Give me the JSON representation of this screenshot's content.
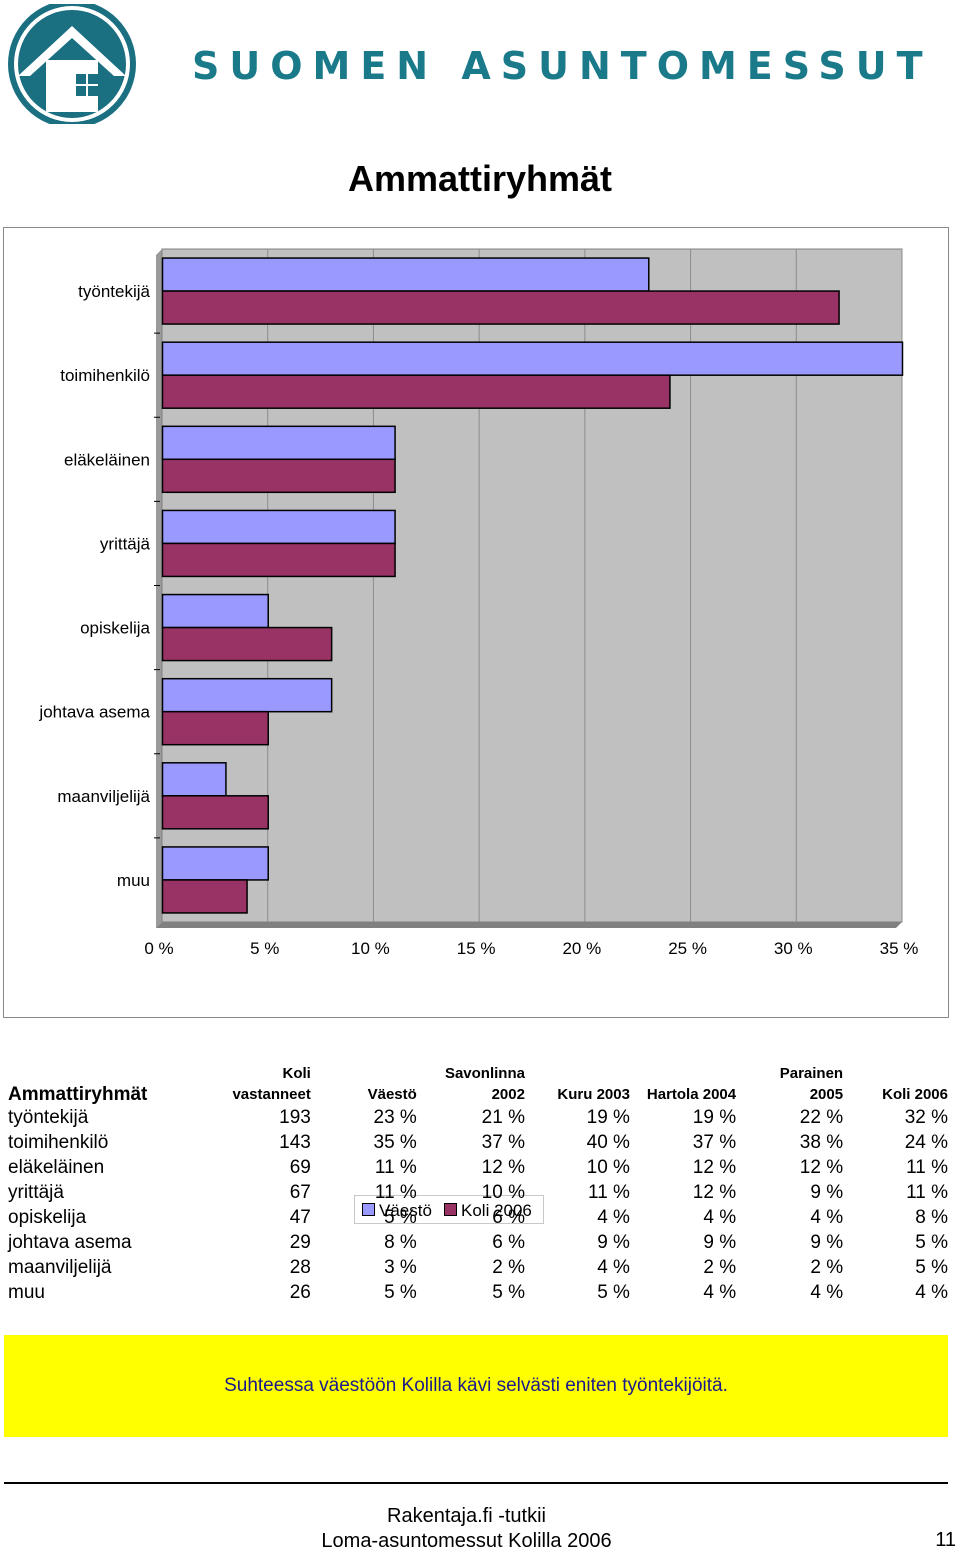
{
  "header": {
    "brand": "SUOMEN ASUNTOMESSUT",
    "logo_icon": "house-logo-icon",
    "brand_color": "#1a7a8a"
  },
  "page_title": "Ammattiryhmät",
  "chart_data": {
    "type": "bar",
    "orientation": "horizontal",
    "title": "",
    "categories": [
      "työntekijä",
      "toimihenkilö",
      "eläkeläinen",
      "yrittäjä",
      "opiskelija",
      "johtava asema",
      "maanviljelijä",
      "muu"
    ],
    "series": [
      {
        "name": "Väestö",
        "color": "#9999ff",
        "values": [
          23,
          35,
          11,
          11,
          5,
          8,
          3,
          5
        ]
      },
      {
        "name": "Koli 2006",
        "color": "#993366",
        "values": [
          32,
          24,
          11,
          11,
          8,
          5,
          5,
          4
        ]
      }
    ],
    "x_ticks": [
      "0 %",
      "5 %",
      "10 %",
      "15 %",
      "20 %",
      "25 %",
      "30 %",
      "35 %"
    ],
    "xlim": [
      0,
      35
    ],
    "grid": true,
    "plot_background": "#c0c0c0",
    "legend_position": "bottom"
  },
  "table": {
    "header_title": "Ammattiryhmät",
    "columns": [
      {
        "line1": "Koli",
        "line2": "vastanneet"
      },
      {
        "line1": "",
        "line2": "Väestö"
      },
      {
        "line1": "Savonlinna",
        "line2": "2002"
      },
      {
        "line1": "",
        "line2": "Kuru 2003"
      },
      {
        "line1": "",
        "line2": "Hartola 2004"
      },
      {
        "line1": "Parainen",
        "line2": "2005"
      },
      {
        "line1": "",
        "line2": "Koli 2006"
      }
    ],
    "rows": [
      {
        "label": "työntekijä",
        "cells": [
          "193",
          "23 %",
          "21 %",
          "19 %",
          "19 %",
          "22 %",
          "32 %"
        ]
      },
      {
        "label": "toimihenkilö",
        "cells": [
          "143",
          "35 %",
          "37 %",
          "40 %",
          "37 %",
          "38 %",
          "24 %"
        ]
      },
      {
        "label": "eläkeläinen",
        "cells": [
          "69",
          "11 %",
          "12 %",
          "10 %",
          "12 %",
          "12 %",
          "11 %"
        ]
      },
      {
        "label": "yrittäjä",
        "cells": [
          "67",
          "11 %",
          "10 %",
          "11 %",
          "12 %",
          "9 %",
          "11 %"
        ]
      },
      {
        "label": "opiskelija",
        "cells": [
          "47",
          "5 %",
          "6 %",
          "4 %",
          "4 %",
          "4 %",
          "8 %"
        ]
      },
      {
        "label": "johtava asema",
        "cells": [
          "29",
          "8 %",
          "6 %",
          "9 %",
          "9 %",
          "9 %",
          "5 %"
        ]
      },
      {
        "label": "maanviljelijä",
        "cells": [
          "28",
          "3 %",
          "2 %",
          "4 %",
          "2 %",
          "2 %",
          "5 %"
        ]
      },
      {
        "label": "muu",
        "cells": [
          "26",
          "5 %",
          "5 %",
          "5 %",
          "4 %",
          "4 %",
          "4 %"
        ]
      }
    ]
  },
  "note": {
    "text": "Suhteessa väestöön Kolilla kävi selvästi eniten työntekijöitä.",
    "background": "#ffff00"
  },
  "footer": {
    "line1": "Rakentaja.fi -tutkii",
    "line2": "Loma-asuntomessut Kolilla 2006",
    "page_number": "11"
  }
}
